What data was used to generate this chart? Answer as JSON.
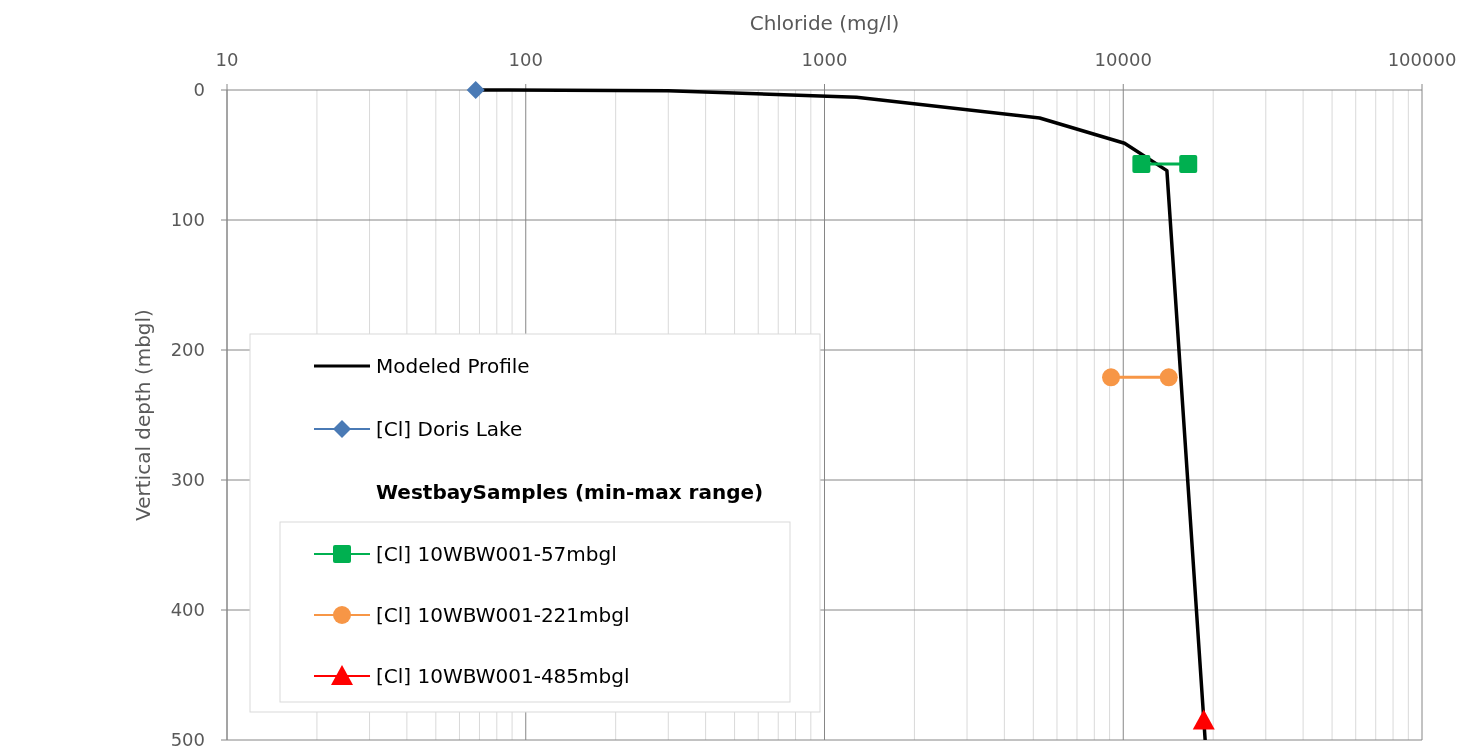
{
  "chart_data": {
    "type": "line",
    "xlabel": "Chloride (mg/l)",
    "ylabel": "Vertical depth (mbgl)",
    "log": "x",
    "xlim": [
      10,
      100000
    ],
    "xticks": [
      10,
      100,
      1000,
      10000,
      100000
    ],
    "ylim": [
      500,
      0
    ],
    "yticks": [
      0,
      100,
      200,
      300,
      400,
      500
    ],
    "grid": true,
    "legend": "bottom left",
    "legend_title": "WestbaySamples (min-max range)",
    "series": [
      {
        "name": "Modeled Profile",
        "color": "#000000",
        "marker": "none",
        "x": [
          68,
          300,
          1280,
          5250,
          10100,
          14000,
          18800
        ],
        "values": [
          0,
          0.5,
          5.5,
          21.5,
          41,
          62,
          500
        ]
      },
      {
        "name": "[Cl] Doris Lake",
        "color": "#4a7ab5",
        "marker": "diamond",
        "x": [
          68
        ],
        "values": [
          0
        ]
      },
      {
        "name": "[Cl] 10WBW001-57mbgl",
        "color": "#00b050",
        "marker": "square",
        "x": [
          11500,
          16500
        ],
        "values": [
          57,
          57
        ]
      },
      {
        "name": "[Cl] 10WBW001-221mbgl",
        "color": "#f79646",
        "marker": "circle",
        "x": [
          9100,
          14200
        ],
        "values": [
          221,
          221
        ]
      },
      {
        "name": "[Cl] 10WBW001-485mbgl",
        "color": "#ff0000",
        "marker": "triangle",
        "x": [
          18600
        ],
        "values": [
          485
        ]
      }
    ]
  }
}
